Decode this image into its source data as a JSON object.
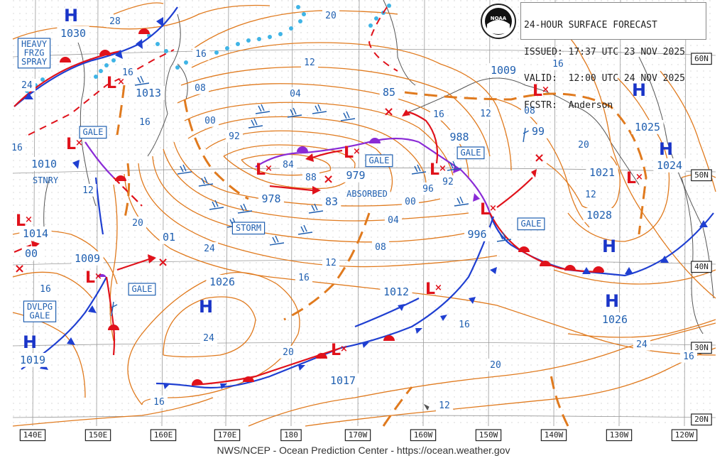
{
  "header": {
    "line1": "24-HOUR SURFACE FORECAST",
    "line2": "ISSUED: 17:37 UTC 23 NOV 2025",
    "line3": "VALID:  12:00 UTC 24 NOV 2025",
    "line4": "FCSTR:  Anderson",
    "logo_text": "NOAA"
  },
  "footer": "NWS/NCEP - Ocean Prediction Center - https://ocean.weather.gov",
  "longitude_labels": [
    "140E",
    "150E",
    "160E",
    "170E",
    "180",
    "170W",
    "160W",
    "150W",
    "140W",
    "130W",
    "120W"
  ],
  "latitude_labels": [
    "60N",
    "50N",
    "40N",
    "30N",
    "20N"
  ],
  "pressure_centers": [
    {
      "type": "H",
      "value": "1030"
    },
    {
      "type": "H",
      "value": "1026"
    },
    {
      "type": "H",
      "value": "1019"
    },
    {
      "type": "H",
      "value": "1025"
    },
    {
      "type": "H",
      "value": "1024"
    },
    {
      "type": "H",
      "value": "1028"
    },
    {
      "type": "H",
      "value": "1026"
    }
  ],
  "pressure_labels": [
    "1013",
    "1010",
    "1014",
    "00",
    "1009",
    "01",
    "1009",
    "988",
    "99",
    "1021",
    "979",
    "978",
    "83",
    "996",
    "1012",
    "1017",
    "85"
  ],
  "isobar_labels": [
    "28",
    "20",
    "16",
    "16",
    "24",
    "12",
    "08",
    "04",
    "00",
    "16",
    "92",
    "84",
    "88",
    "12",
    "20",
    "24",
    "16",
    "96",
    "92",
    "00",
    "04",
    "08",
    "12",
    "16",
    "20",
    "16",
    "24",
    "20",
    "24",
    "16",
    "20",
    "12",
    "16",
    "16",
    "08",
    "12",
    "16",
    "16",
    "12"
  ],
  "warnings": [
    "HEAVY\nFRZG\nSPRAY",
    "GALE",
    "GALE",
    "GALE",
    "GALE",
    "GALE",
    "STORM",
    "DVLPG\nGALE",
    "STNRY",
    "ABSORBED"
  ],
  "colors": {
    "isobar": "#e07a1e",
    "warm_front": "#e0121b",
    "cold_front": "#1f3fd1",
    "occluded": "#8a2bd6",
    "ice_edge": "#3fb4e6",
    "label": "#1f5fb0",
    "low": "#e0121b",
    "high": "#1a35c8"
  }
}
